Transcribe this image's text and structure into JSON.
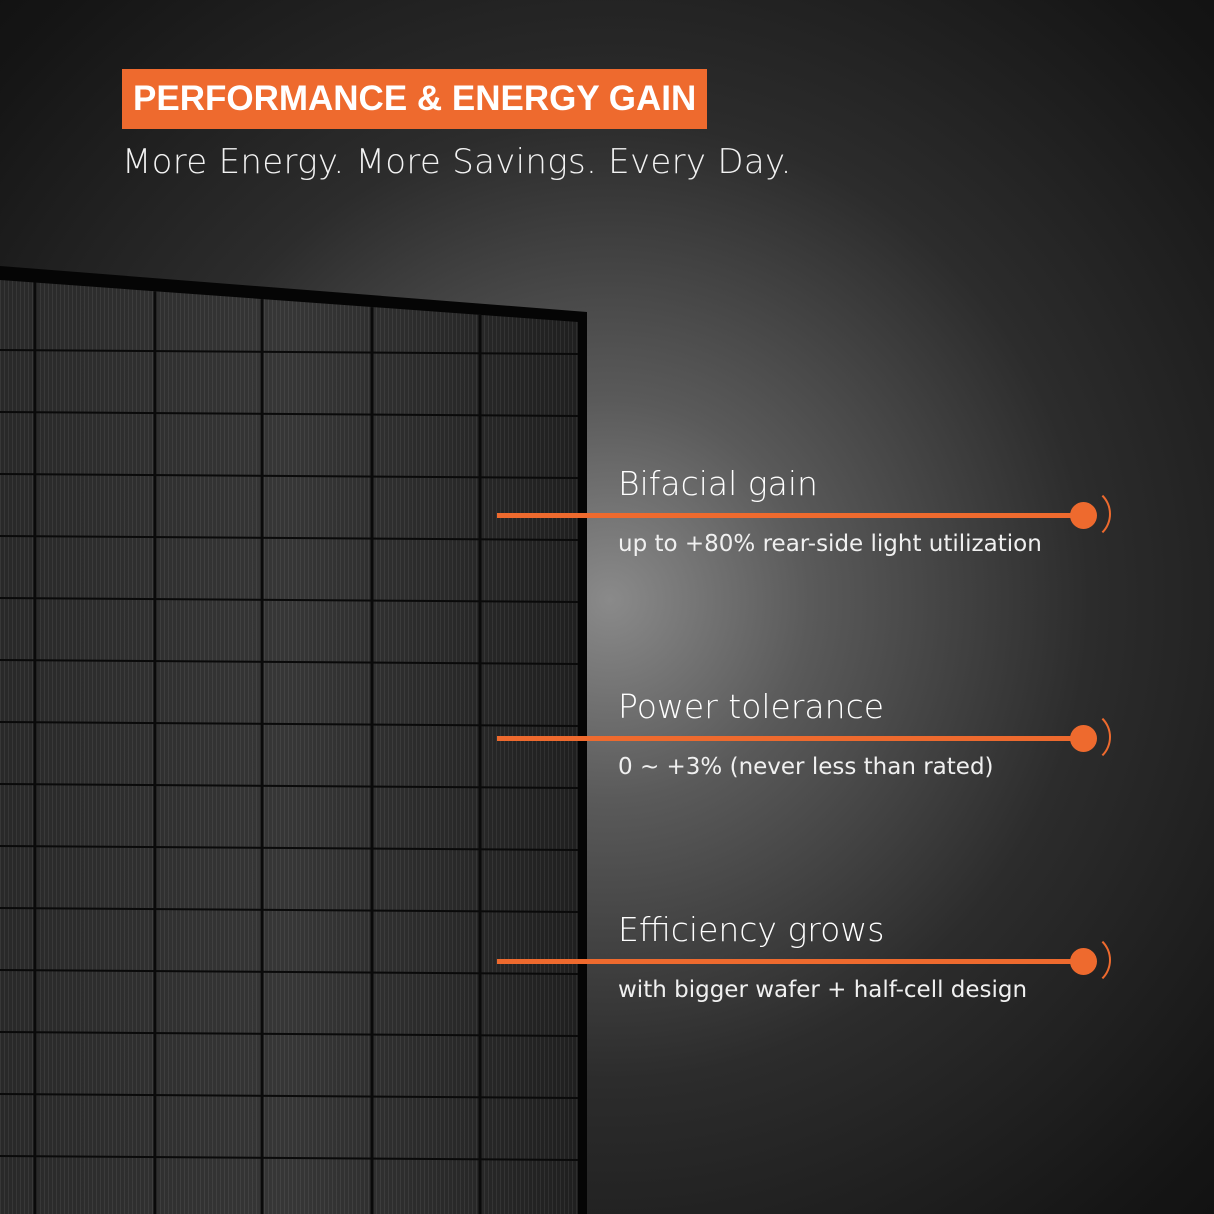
{
  "header": {
    "badge": "PERFORMANCE & ENERGY GAIN",
    "subtitle": "More Energy. More Savings. Every Day."
  },
  "features": [
    {
      "title": "Bifacial gain",
      "detail": "up to +80% rear-side light utilization"
    },
    {
      "title": "Power tolerance",
      "detail": "0 ~ +3% (never less than rated)"
    },
    {
      "title": "Efficiency grows",
      "detail": "with bigger wafer + half-cell design"
    }
  ],
  "colors": {
    "accent": "#ee6a2e",
    "panel": "#151515"
  },
  "image": {
    "subject": "solar-panel"
  }
}
